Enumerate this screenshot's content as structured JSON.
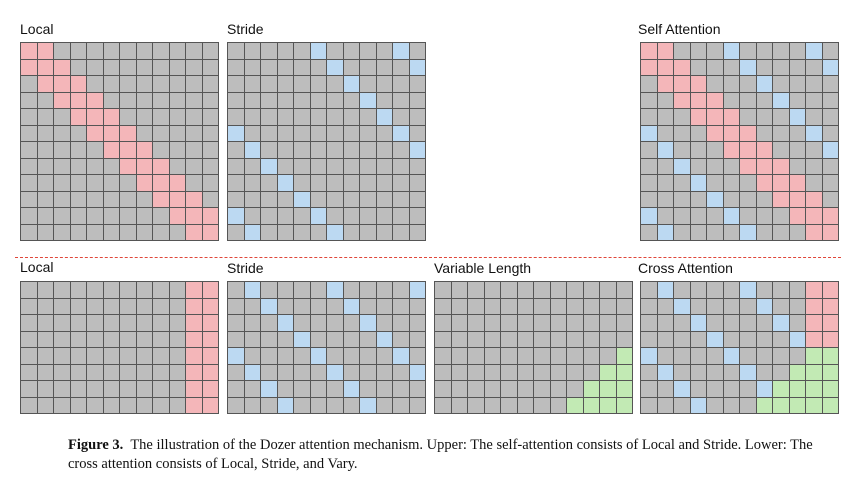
{
  "panels": [
    {
      "id": "upper-local",
      "label": "Local",
      "rows": 12,
      "cols": 12,
      "pattern": "local"
    },
    {
      "id": "upper-stride",
      "label": "Stride",
      "rows": 12,
      "cols": 12,
      "pattern": "stride"
    },
    {
      "id": "upper-self-attention",
      "label": "Self Attention",
      "rows": 12,
      "cols": 12,
      "pattern": "self"
    },
    {
      "id": "lower-local",
      "label": "Local",
      "rows": 8,
      "cols": 12,
      "pattern": "cross-local"
    },
    {
      "id": "lower-stride",
      "label": "Stride",
      "rows": 8,
      "cols": 12,
      "pattern": "cross-stride"
    },
    {
      "id": "lower-variable-length",
      "label": "Variable Length",
      "rows": 8,
      "cols": 12,
      "pattern": "vary"
    },
    {
      "id": "lower-cross-attention",
      "label": "Cross Attention",
      "rows": 8,
      "cols": 12,
      "pattern": "cross"
    }
  ],
  "colors": {
    "grid_line": "#555555",
    "cell_default": "#bdbdbd",
    "local": "#f4b6b9",
    "stride": "#bcd9f2",
    "vary": "#c2eab4",
    "divider": "#e0463a"
  },
  "caption": {
    "figure": "Figure 3.",
    "text": "The illustration of the Dozer attention mechanism. Upper: The self-attention consists of Local and Stride. Lower: The cross attention consists of Local, Stride, and Vary."
  }
}
